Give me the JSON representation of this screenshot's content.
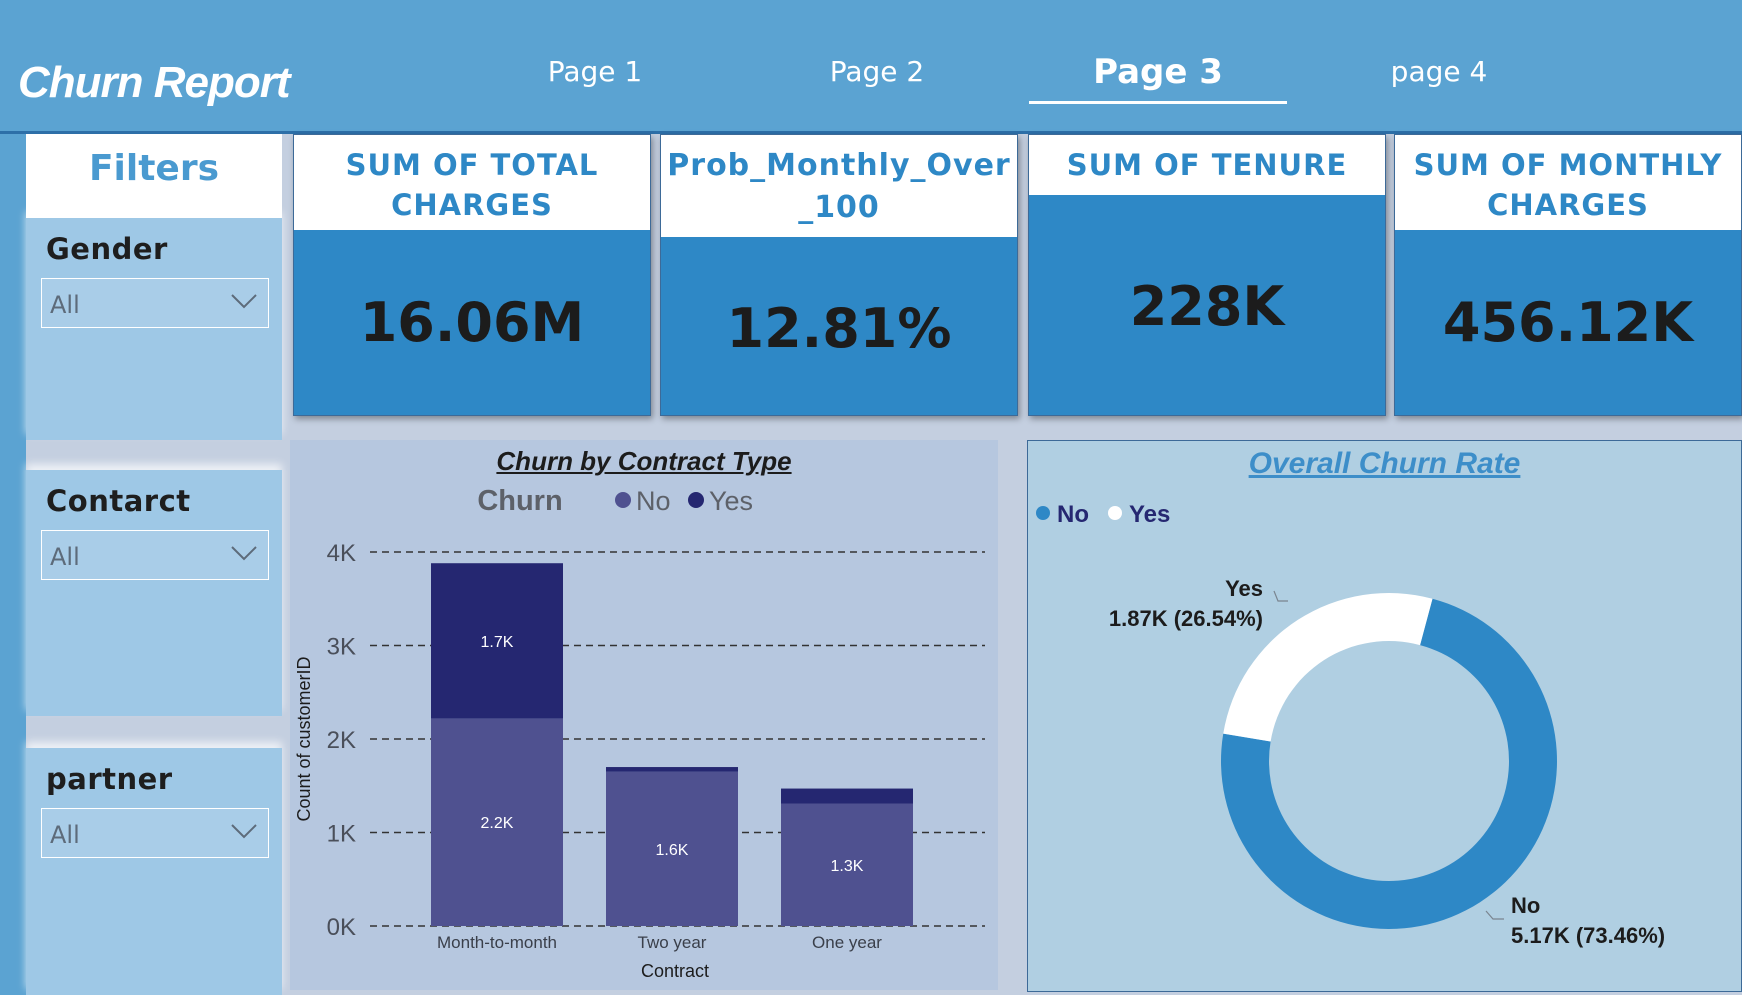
{
  "header": {
    "title": "Churn Report",
    "tabs": [
      {
        "label": "Page 1",
        "active": false
      },
      {
        "label": "Page 2",
        "active": false
      },
      {
        "label": "Page 3",
        "active": true
      },
      {
        "label": "page 4",
        "active": false
      }
    ]
  },
  "filters": {
    "title": "Filters",
    "items": [
      {
        "label": "Gender",
        "value": "All"
      },
      {
        "label": "Contarct",
        "value": "All"
      },
      {
        "label": "partner",
        "value": "All"
      }
    ]
  },
  "kpis": [
    {
      "label": "SUM OF TOTAL CHARGES",
      "value": "16.06M"
    },
    {
      "label": "Prob_Monthly_Over_100",
      "value": "12.81%"
    },
    {
      "label": "SUM OF TENURE",
      "value": "228K"
    },
    {
      "label": "SUM OF MONTHLY CHARGES",
      "value": "456.12K"
    }
  ],
  "colors": {
    "header_bg": "#5ba3d2",
    "kpi_bg": "#2e88c6",
    "bar_no": "#4f5190",
    "bar_yes": "#252771",
    "donut_no": "#2e88c6",
    "donut_yes": "#ffffff"
  },
  "chart_data": [
    {
      "type": "bar",
      "stacked": true,
      "title": "Churn by Contract Type",
      "legend_title": "Churn",
      "legend_position": "top",
      "xlabel": "Contract",
      "ylabel": "Count of customerID",
      "categories": [
        "Month-to-month",
        "Two year",
        "One year"
      ],
      "series": [
        {
          "name": "No",
          "values": [
            2220,
            1650,
            1310
          ],
          "labels": [
            "2.2K",
            "1.6K",
            "1.3K"
          ]
        },
        {
          "name": "Yes",
          "values": [
            1660,
            50,
            160
          ],
          "labels": [
            "1.7K",
            "",
            ""
          ]
        }
      ],
      "ylim": [
        0,
        4000
      ],
      "yticks": [
        "0K",
        "1K",
        "2K",
        "3K",
        "4K"
      ],
      "grid": true
    },
    {
      "type": "pie",
      "donut": true,
      "title": "Overall Churn Rate",
      "legend_position": "top-left",
      "slices": [
        {
          "name": "No",
          "value": 5170,
          "label": "5.17K (73.46%)"
        },
        {
          "name": "Yes",
          "value": 1870,
          "label": "1.87K (26.54%)"
        }
      ]
    }
  ]
}
